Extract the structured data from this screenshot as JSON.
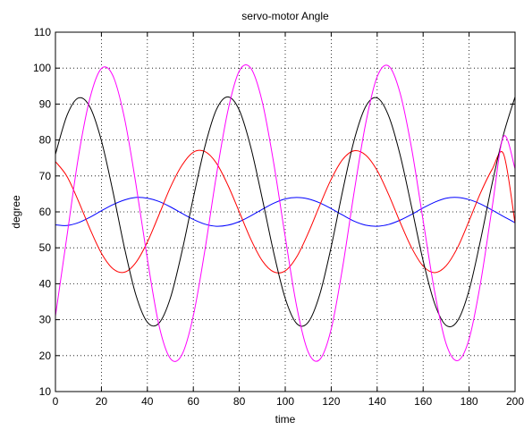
{
  "chart_data": {
    "type": "line",
    "title": "servo-motor Angle",
    "xlabel": "time",
    "ylabel": "degree",
    "xlim": [
      0,
      200
    ],
    "ylim": [
      10,
      110
    ],
    "xticks": [
      "0",
      "20",
      "40",
      "60",
      "80",
      "100",
      "120",
      "140",
      "160",
      "180",
      "200"
    ],
    "yticks": [
      "10",
      "20",
      "30",
      "40",
      "50",
      "60",
      "70",
      "80",
      "90",
      "100",
      "110"
    ],
    "grid": true,
    "legend": "none",
    "series": [
      {
        "color": "#0000ff",
        "x": [
          0,
          5,
          10,
          15,
          20,
          25,
          30,
          35,
          40,
          45,
          50,
          55,
          60,
          65,
          70,
          75,
          80,
          85,
          90,
          95,
          100,
          105,
          110,
          115,
          120,
          125,
          130,
          135,
          140,
          145,
          150,
          155,
          160,
          165,
          170,
          175,
          180,
          185,
          190,
          195,
          200
        ],
        "values": [
          56.4,
          56.2,
          57.0,
          58.5,
          60.3,
          62.0,
          63.3,
          64.0,
          63.8,
          62.9,
          61.4,
          59.6,
          57.9,
          56.6,
          56.0,
          56.3,
          57.3,
          58.9,
          60.7,
          62.4,
          63.6,
          64.0,
          63.6,
          62.5,
          60.9,
          59.1,
          57.4,
          56.3,
          56.0,
          56.5,
          57.7,
          59.3,
          61.1,
          62.7,
          63.8,
          64.0,
          63.4,
          62.2,
          60.5,
          58.7,
          57.0
        ]
      },
      {
        "color": "#ff0000",
        "x": [
          0,
          5,
          10,
          15,
          20,
          25,
          30,
          35,
          40,
          45,
          50,
          55,
          60,
          65,
          70,
          75,
          80,
          85,
          90,
          95,
          100,
          105,
          110,
          115,
          120,
          125,
          130,
          135,
          140,
          145,
          150,
          155,
          160,
          165,
          170,
          175,
          180,
          185,
          190,
          195,
          200
        ],
        "values": [
          74.0,
          69.9,
          63.0,
          55.3,
          48.5,
          44.2,
          43.2,
          45.9,
          51.6,
          59.1,
          66.8,
          72.9,
          76.6,
          76.8,
          73.6,
          67.5,
          60.0,
          52.4,
          46.4,
          43.3,
          43.6,
          47.5,
          54.1,
          61.8,
          69.1,
          74.6,
          77.0,
          75.8,
          71.5,
          64.8,
          57.1,
          50.0,
          44.9,
          43.1,
          45.0,
          50.1,
          57.5,
          65.3,
          71.8,
          76.1,
          56.8
        ]
      },
      {
        "color": "#000000",
        "x": [
          0,
          5,
          10,
          15,
          20,
          25,
          30,
          35,
          40,
          45,
          50,
          55,
          60,
          65,
          70,
          75,
          80,
          85,
          90,
          95,
          100,
          105,
          110,
          115,
          120,
          125,
          130,
          135,
          140,
          145,
          150,
          155,
          160,
          165,
          170,
          175,
          180,
          185,
          190,
          195,
          200
        ],
        "values": [
          76.0,
          86.8,
          91.7,
          89.2,
          79.8,
          65.7,
          50.1,
          36.9,
          29.3,
          29.0,
          36.0,
          48.8,
          63.9,
          78.1,
          88.4,
          92.0,
          88.3,
          78.0,
          63.7,
          48.6,
          35.9,
          28.9,
          29.3,
          37.0,
          50.3,
          65.9,
          80.0,
          89.3,
          91.7,
          86.7,
          75.8,
          61.3,
          46.4,
          34.5,
          28.4,
          29.7,
          38.2,
          52.2,
          67.8,
          81.6,
          92.0
        ]
      },
      {
        "color": "#ff00ff",
        "x": [
          0,
          5,
          10,
          15,
          20,
          25,
          30,
          35,
          40,
          45,
          50,
          55,
          60,
          65,
          70,
          75,
          80,
          85,
          90,
          95,
          100,
          105,
          110,
          115,
          120,
          125,
          130,
          135,
          140,
          145,
          150,
          155,
          160,
          165,
          170,
          175,
          180,
          185,
          190,
          195,
          200
        ],
        "values": [
          31.0,
          53.2,
          75.3,
          91.6,
          99.9,
          97.9,
          86.2,
          67.8,
          46.9,
          28.6,
          19.2,
          20.2,
          31.1,
          49.2,
          70.0,
          88.0,
          99.2,
          100.0,
          90.6,
          73.5,
          53.0,
          33.6,
          21.0,
          18.9,
          27.4,
          44.7,
          65.6,
          84.6,
          97.6,
          100.6,
          93.0,
          77.6,
          57.6,
          37.8,
          23.3,
          18.6,
          24.6,
          40.3,
          61.1,
          81.0,
          72.0
        ]
      }
    ]
  }
}
